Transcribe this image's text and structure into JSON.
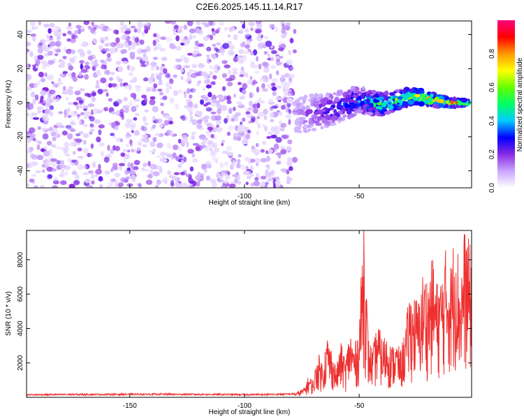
{
  "title": "C2E6.2025.145.11.14.R17",
  "chart_data": [
    {
      "type": "heatmap",
      "xlabel": "Height of straight line (km)",
      "ylabel": "Frequency (Hz)",
      "xlim": [
        -195,
        -1
      ],
      "ylim": [
        -50,
        48
      ],
      "x_ticks": [
        -150,
        -100,
        -50
      ],
      "y_ticks": [
        40,
        20,
        0,
        -20,
        -40
      ],
      "noise_region_x": [
        -195,
        -78
      ],
      "signal_track": {
        "description_points_x": [
          -78,
          -70,
          -60,
          -50,
          -45,
          -40,
          -30,
          -25,
          -20,
          -10,
          -2
        ],
        "frequency_hz": [
          -8,
          -6,
          -3,
          2,
          0,
          -1,
          3,
          4,
          2,
          0,
          0
        ],
        "normalized_amplitude": [
          0.15,
          0.25,
          0.35,
          0.45,
          0.55,
          0.6,
          0.7,
          0.75,
          0.85,
          0.95,
          0.8
        ]
      },
      "colorbar": {
        "label": "Normalized spectral amplitude",
        "range": [
          0.0,
          1.0
        ],
        "ticks": [
          0.0,
          0.2,
          0.4,
          0.6,
          0.8
        ],
        "tick_labels": [
          "0.0",
          "0.2",
          "0.4",
          "0.6",
          "0.8"
        ],
        "colors": [
          "#ffffff",
          "#c9a6ff",
          "#8a2be2",
          "#0000ff",
          "#00ccff",
          "#00ff66",
          "#66ff00",
          "#ffff00",
          "#ff9900",
          "#ff0000",
          "#ff007f"
        ]
      }
    },
    {
      "type": "line",
      "xlabel": "Height of straight line (km)",
      "ylabel": "SNR (10 * v/v)",
      "xlim": [
        -195,
        -1
      ],
      "ylim": [
        0,
        9700
      ],
      "x_ticks": [
        -150,
        -100,
        -50
      ],
      "y_ticks": [
        2000,
        4000,
        6000,
        8000
      ],
      "series": [
        {
          "color": "#ee3030",
          "x": [
            -195,
            -180,
            -160,
            -140,
            -120,
            -100,
            -85,
            -78,
            -74,
            -72,
            -70,
            -68,
            -66,
            -64,
            -62,
            -60,
            -58,
            -56,
            -54,
            -52,
            -50,
            -48,
            -46,
            -44,
            -42,
            -40,
            -38,
            -36,
            -34,
            -32,
            -30,
            -28,
            -26,
            -24,
            -22,
            -20,
            -18,
            -16,
            -14,
            -12,
            -10,
            -8,
            -6,
            -4,
            -2,
            -1
          ],
          "y": [
            150,
            160,
            170,
            180,
            170,
            160,
            170,
            200,
            500,
            1100,
            900,
            2300,
            1800,
            3200,
            2500,
            1500,
            2800,
            2000,
            3500,
            2600,
            3800,
            9700,
            3000,
            2500,
            3900,
            3000,
            3300,
            2600,
            2900,
            2400,
            3500,
            5400,
            5200,
            5000,
            6600,
            6100,
            7200,
            5900,
            6400,
            7800,
            6800,
            9200,
            6200,
            8700,
            7900,
            7500
          ]
        }
      ]
    }
  ]
}
